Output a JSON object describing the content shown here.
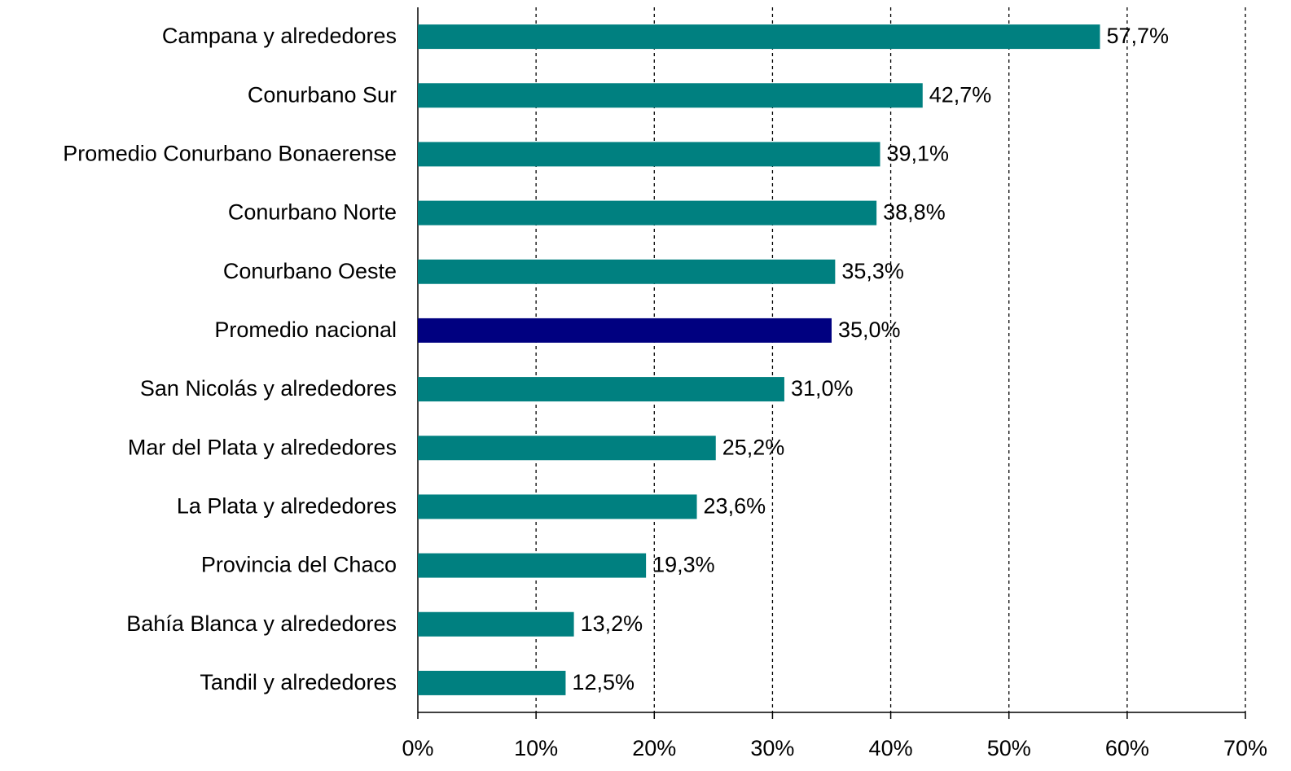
{
  "chart_data": {
    "type": "bar",
    "orientation": "horizontal",
    "categories": [
      "Campana y alrededores",
      "Conurbano Sur",
      "Promedio Conurbano Bonaerense",
      "Conurbano Norte",
      "Conurbano Oeste",
      "Promedio nacional",
      "San Nicolás y alrededores",
      "Mar del Plata y alrededores",
      "La Plata y alrededores",
      "Provincia del Chaco",
      "Bahía Blanca y alrededores",
      "Tandil y alrededores"
    ],
    "values": [
      57.7,
      42.7,
      39.1,
      38.8,
      35.3,
      35.0,
      31.0,
      25.2,
      23.6,
      19.3,
      13.2,
      12.5
    ],
    "value_labels": [
      "57,7%",
      "42,7%",
      "39,1%",
      "38,8%",
      "35,3%",
      "35,0%",
      "31,0%",
      "25,2%",
      "23,6%",
      "19,3%",
      "13,2%",
      "12,5%"
    ],
    "colors": [
      "#008080",
      "#008080",
      "#008080",
      "#008080",
      "#008080",
      "#000080",
      "#008080",
      "#008080",
      "#008080",
      "#008080",
      "#008080",
      "#008080"
    ],
    "xlim": [
      0,
      70
    ],
    "xticks": [
      {
        "value": 0,
        "label": "0%"
      },
      {
        "value": 10,
        "label": "10%"
      },
      {
        "value": 20,
        "label": "20%"
      },
      {
        "value": 30,
        "label": "30%"
      },
      {
        "value": 40,
        "label": "40%"
      },
      {
        "value": 50,
        "label": "50%"
      },
      {
        "value": 60,
        "label": "60%"
      },
      {
        "value": 70,
        "label": "70%"
      }
    ],
    "grid": true
  }
}
